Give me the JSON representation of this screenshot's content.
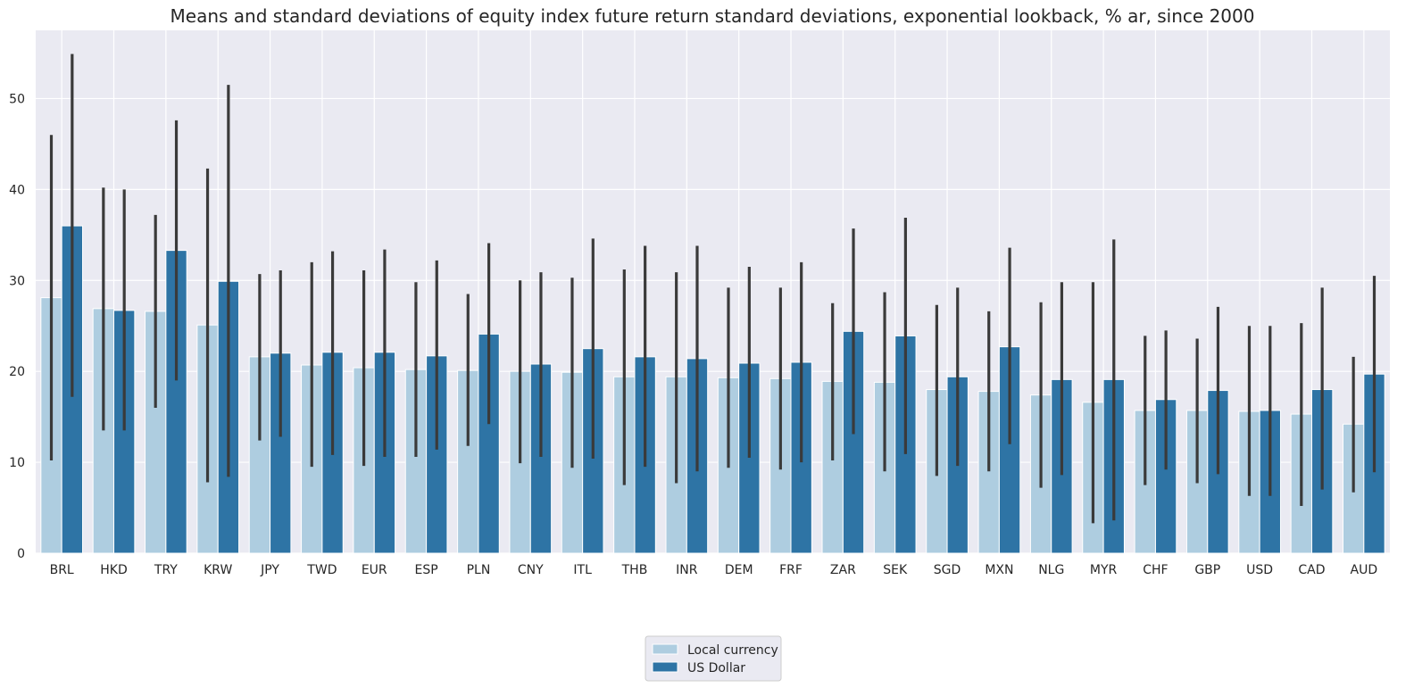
{
  "chart_data": {
    "type": "bar",
    "title": "Means and standard deviations of equity index future return standard deviations, exponential lookback, % ar, since 2000",
    "xlabel": "",
    "ylabel": "",
    "ylim": [
      0,
      57.5
    ],
    "yticks": [
      0,
      10,
      20,
      30,
      40,
      50
    ],
    "grid": true,
    "legend_position": "bottom-center",
    "categories": [
      "BRL",
      "HKD",
      "TRY",
      "KRW",
      "JPY",
      "TWD",
      "EUR",
      "ESP",
      "PLN",
      "CNY",
      "ITL",
      "THB",
      "INR",
      "DEM",
      "FRF",
      "ZAR",
      "SEK",
      "SGD",
      "MXN",
      "NLG",
      "MYR",
      "CHF",
      "GBP",
      "USD",
      "CAD",
      "AUD"
    ],
    "series": [
      {
        "name": "Local currency",
        "color": "#aecde0",
        "values": [
          28.1,
          26.9,
          26.6,
          25.1,
          21.6,
          20.7,
          20.4,
          20.2,
          20.1,
          20.0,
          19.9,
          19.4,
          19.4,
          19.3,
          19.2,
          18.9,
          18.8,
          18.0,
          17.8,
          17.4,
          16.6,
          15.7,
          15.7,
          15.6,
          15.3,
          14.2
        ],
        "error_low": [
          10.2,
          13.5,
          16.0,
          7.8,
          12.4,
          9.5,
          9.6,
          10.6,
          11.8,
          9.9,
          9.4,
          7.5,
          7.7,
          9.4,
          9.2,
          10.2,
          9.0,
          8.5,
          9.0,
          7.2,
          3.3,
          7.5,
          7.7,
          6.3,
          5.2,
          6.7
        ],
        "error_high": [
          46.0,
          40.2,
          37.2,
          42.3,
          30.7,
          32.0,
          31.1,
          29.8,
          28.5,
          30.0,
          30.3,
          31.2,
          30.9,
          29.2,
          29.2,
          27.5,
          28.7,
          27.3,
          26.6,
          27.6,
          29.8,
          23.9,
          23.6,
          25.0,
          25.3,
          21.6
        ]
      },
      {
        "name": "US Dollar",
        "color": "#2e74a5",
        "values": [
          36.0,
          26.7,
          33.3,
          29.9,
          22.0,
          22.1,
          22.1,
          21.7,
          24.1,
          20.8,
          22.5,
          21.6,
          21.4,
          20.9,
          21.0,
          24.4,
          23.9,
          19.4,
          22.7,
          19.1,
          19.1,
          16.9,
          17.9,
          15.7,
          18.0,
          19.7
        ],
        "error_low": [
          17.2,
          13.5,
          19.0,
          8.4,
          12.8,
          10.8,
          10.6,
          11.4,
          14.2,
          10.6,
          10.4,
          9.5,
          9.0,
          10.5,
          10.0,
          13.1,
          10.9,
          9.6,
          12.0,
          8.6,
          3.6,
          9.2,
          8.7,
          6.3,
          7.0,
          8.9
        ],
        "error_high": [
          54.9,
          40.0,
          47.6,
          51.5,
          31.1,
          33.2,
          33.4,
          32.2,
          34.1,
          30.9,
          34.6,
          33.8,
          33.8,
          31.5,
          32.0,
          35.7,
          36.9,
          29.2,
          33.6,
          29.8,
          34.5,
          24.5,
          27.1,
          25.0,
          29.2,
          30.5
        ]
      }
    ]
  },
  "colors": {
    "axes_background": "#eaeaf2",
    "grid": "#ffffff",
    "error_bar": "#3a3a3a",
    "text": "#262626"
  }
}
